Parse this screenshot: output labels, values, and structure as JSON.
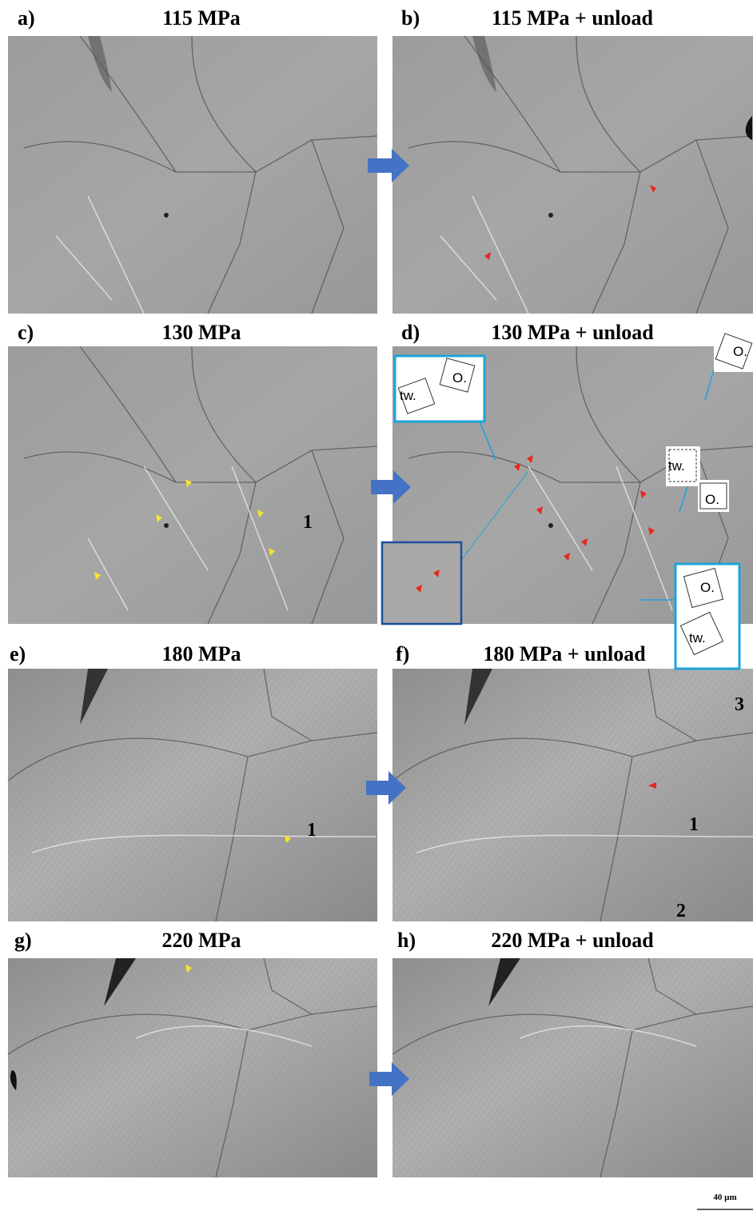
{
  "panels": [
    {
      "label": "a)",
      "title": "115 MPa"
    },
    {
      "label": "b)",
      "title": "115 MPa + unload"
    },
    {
      "label": "c)",
      "title": "130 MPa",
      "annotations": [
        "1"
      ]
    },
    {
      "label": "d)",
      "title": "130 MPa + unload",
      "annotations": [
        "tw.",
        "O.",
        "O.",
        "tw.",
        "O.",
        "O.",
        "tw."
      ]
    },
    {
      "label": "e)",
      "title": "180 MPa",
      "annotations": [
        "1"
      ]
    },
    {
      "label": "f)",
      "title": "180 MPa + unload",
      "annotations": [
        "3",
        "1",
        "2"
      ]
    },
    {
      "label": "g)",
      "title": "220 MPa"
    },
    {
      "label": "h)",
      "title": "220 MPa + unload"
    }
  ],
  "scale_bar": "40 µm"
}
